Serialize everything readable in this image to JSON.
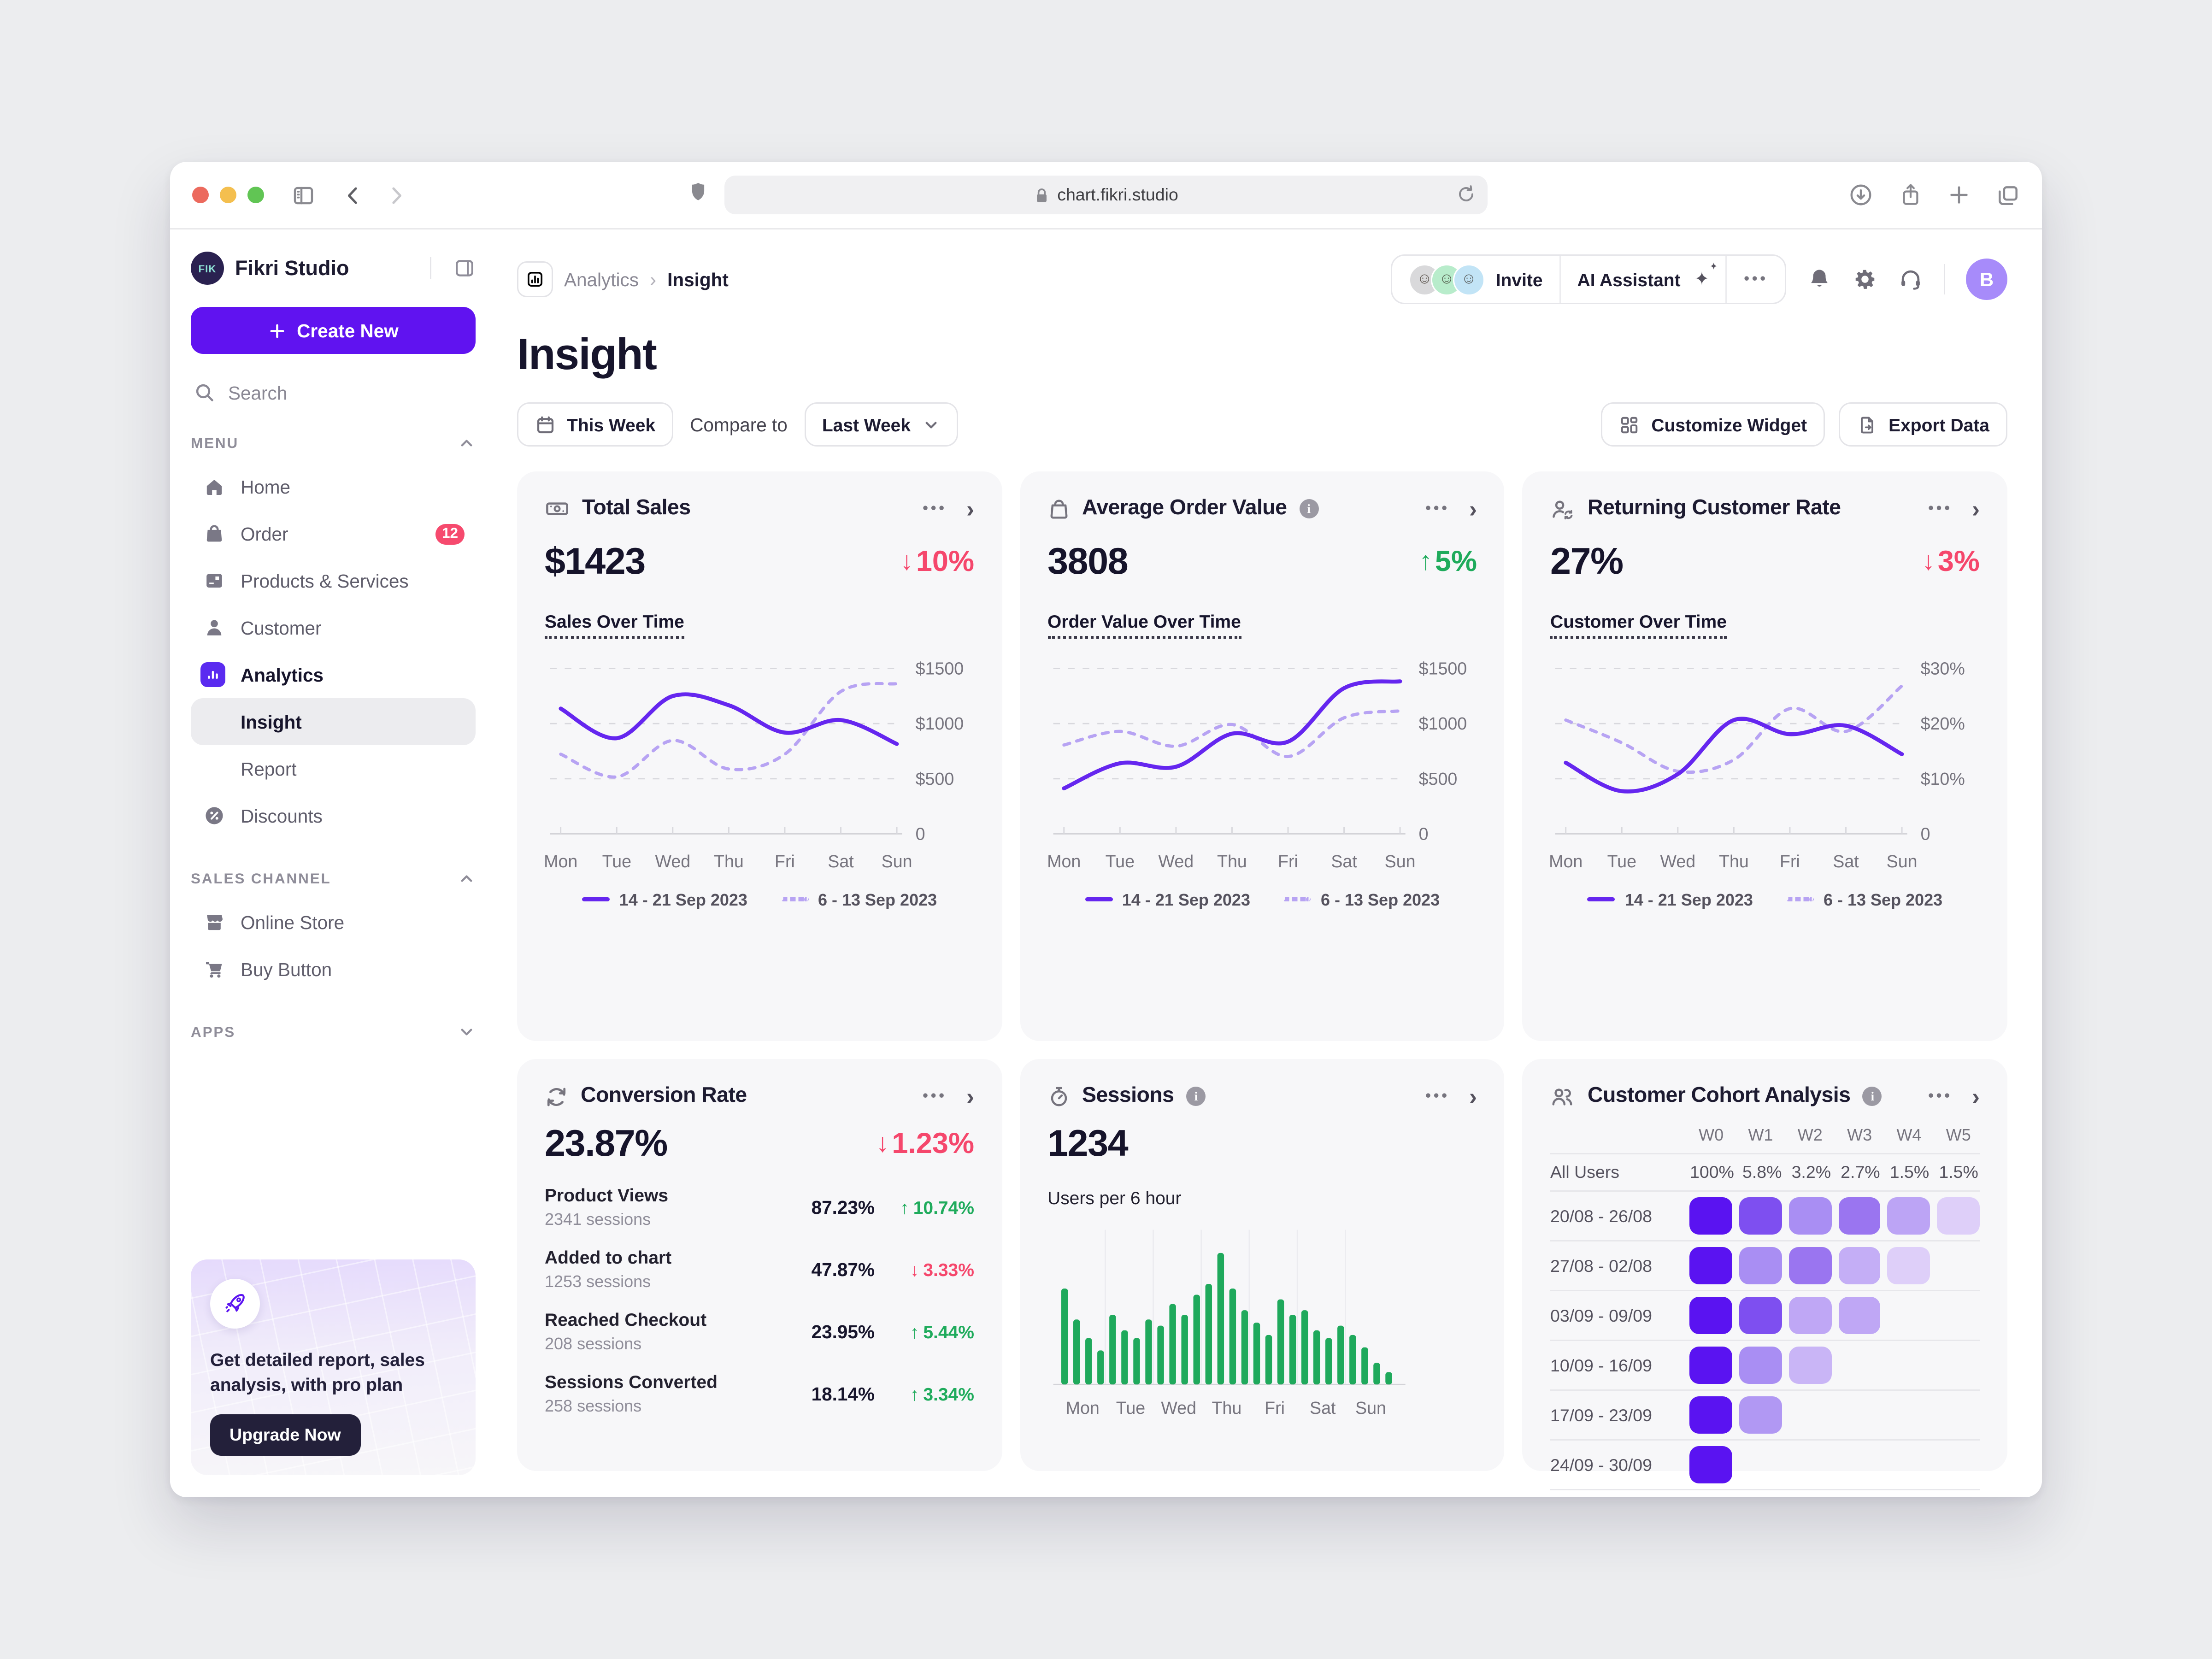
{
  "browser": {
    "url": "chart.fikri.studio"
  },
  "sidebar": {
    "brand": "Fikri Studio",
    "brand_initials": "FIK",
    "create_new": "Create New",
    "search_placeholder": "Search",
    "menu_label": "MENU",
    "menu": [
      {
        "label": "Home",
        "icon": "home"
      },
      {
        "label": "Order",
        "icon": "order",
        "badge": "12"
      },
      {
        "label": "Products & Services",
        "icon": "products"
      },
      {
        "label": "Customer",
        "icon": "customer"
      },
      {
        "label": "Analytics",
        "icon": "analytics",
        "bold": true
      },
      {
        "label": "Insight",
        "indent": true,
        "active": true
      },
      {
        "label": "Report",
        "indent": true
      },
      {
        "label": "Discounts",
        "icon": "discounts"
      }
    ],
    "sales_channel_label": "SALES CHANNEL",
    "sales_channel": [
      {
        "label": "Online Store",
        "icon": "store"
      },
      {
        "label": "Buy Button",
        "icon": "cart"
      }
    ],
    "apps_label": "APPS",
    "upgrade": {
      "text": "Get detailed report, sales analysis, with pro plan",
      "button": "Upgrade Now"
    }
  },
  "header": {
    "breadcrumb_parent": "Analytics",
    "breadcrumb_current": "Insight",
    "invite": "Invite",
    "ai_assistant": "AI Assistant",
    "avatar_initial": "B"
  },
  "toolbar": {
    "title": "Insight",
    "this_week": "This Week",
    "compare_to": "Compare to",
    "last_week": "Last Week",
    "customize": "Customize Widget",
    "export": "Export Data"
  },
  "legend": {
    "current": "14 - 21 Sep 2023",
    "previous": "6 - 13 Sep 2023"
  },
  "cards": {
    "total_sales": {
      "title": "Total Sales",
      "value": "$1423",
      "delta": "10%",
      "delta_dir": "down",
      "section": "Sales Over Time"
    },
    "aov": {
      "title": "Average Order Value",
      "value": "3808",
      "delta": "5%",
      "delta_dir": "up",
      "section": "Order Value Over Time"
    },
    "returning": {
      "title": "Returning Customer Rate",
      "value": "27%",
      "delta": "3%",
      "delta_dir": "down",
      "section": "Customer Over Time"
    },
    "conversion": {
      "title": "Conversion Rate",
      "value": "23.87%",
      "delta": "1.23%",
      "delta_dir": "down",
      "rows": [
        {
          "label": "Product Views",
          "sessions": "2341 sessions",
          "rate": "87.23%",
          "delta": "10.74%",
          "dir": "up"
        },
        {
          "label": "Added to chart",
          "sessions": "1253 sessions",
          "rate": "47.87%",
          "delta": "3.33%",
          "dir": "down"
        },
        {
          "label": "Reached Checkout",
          "sessions": "208 sessions",
          "rate": "23.95%",
          "delta": "5.44%",
          "dir": "up"
        },
        {
          "label": "Sessions Converted",
          "sessions": "258 sessions",
          "rate": "18.14%",
          "delta": "3.34%",
          "dir": "up"
        }
      ]
    },
    "sessions": {
      "title": "Sessions",
      "value": "1234",
      "subtitle": "Users per 6 hour"
    },
    "cohort": {
      "title": "Customer Cohort Analysis",
      "columns": [
        "W0",
        "W1",
        "W2",
        "W3",
        "W4",
        "W5"
      ],
      "all_users_label": "All Users",
      "all_users": [
        "100%",
        "5.8%",
        "3.2%",
        "2.7%",
        "1.5%",
        "1.5%"
      ],
      "rows": [
        {
          "label": "20/08 - 26/08",
          "cells": [
            "#5A13F1",
            "#7E4FF0",
            "#A98EF3",
            "#9A75F0",
            "#BCA4F5",
            "#DECFF9"
          ]
        },
        {
          "label": "27/08 - 02/08",
          "cells": [
            "#5A13F1",
            "#A98EF3",
            "#9A75F0",
            "#C4AEF6",
            "#DECFF9"
          ]
        },
        {
          "label": "03/09 - 09/09",
          "cells": [
            "#5A13F1",
            "#7E4FF0",
            "#BFA7F5",
            "#BFA7F5"
          ]
        },
        {
          "label": "10/09 - 16/09",
          "cells": [
            "#5A13F1",
            "#A98EF3",
            "#C9B5F6"
          ]
        },
        {
          "label": "17/09 - 23/09",
          "cells": [
            "#5A13F1",
            "#B198F3"
          ]
        },
        {
          "label": "24/09 - 30/09",
          "cells": [
            "#5A13F1"
          ]
        }
      ]
    }
  },
  "chart_data": [
    {
      "type": "line",
      "card": "total_sales",
      "title": "Sales Over Time",
      "x": [
        "Mon",
        "Tue",
        "Wed",
        "Thu",
        "Fri",
        "Sat",
        "Sun"
      ],
      "yticks": [
        "$1500",
        "$1000",
        "$500",
        "0"
      ],
      "ylim": [
        0,
        1500
      ],
      "series": [
        {
          "name": "14 - 21 Sep 2023",
          "style": "solid",
          "values": [
            1100,
            840,
            1210,
            1130,
            890,
            1000,
            790
          ]
        },
        {
          "name": "6 - 13 Sep 2023",
          "style": "dashed",
          "values": [
            700,
            500,
            820,
            570,
            700,
            1250,
            1320
          ]
        }
      ]
    },
    {
      "type": "line",
      "card": "aov",
      "title": "Order Value Over Time",
      "x": [
        "Mon",
        "Tue",
        "Wed",
        "Thu",
        "Fri",
        "Sat",
        "Sun"
      ],
      "yticks": [
        "$1500",
        "$1000",
        "$500",
        "0"
      ],
      "ylim": [
        0,
        1500
      ],
      "series": [
        {
          "name": "14 - 21 Sep 2023",
          "style": "solid",
          "values": [
            400,
            620,
            590,
            880,
            810,
            1280,
            1340
          ]
        },
        {
          "name": "6 - 13 Sep 2023",
          "style": "dashed",
          "values": [
            780,
            900,
            770,
            960,
            680,
            1020,
            1080
          ]
        }
      ]
    },
    {
      "type": "line",
      "card": "returning",
      "title": "Customer Over Time",
      "x": [
        "Mon",
        "Tue",
        "Wed",
        "Thu",
        "Fri",
        "Sat",
        "Sun"
      ],
      "yticks": [
        "$30%",
        "$20%",
        "$10%",
        "0"
      ],
      "ylim": [
        0,
        30
      ],
      "series": [
        {
          "name": "14 - 21 Sep 2023",
          "style": "solid",
          "values": [
            12.5,
            7.5,
            10.5,
            20,
            17.5,
            19,
            14
          ]
        },
        {
          "name": "6 - 13 Sep 2023",
          "style": "dashed",
          "values": [
            20,
            16,
            11,
            13,
            22,
            18,
            26
          ]
        }
      ]
    },
    {
      "type": "bar",
      "card": "sessions",
      "title": "Users per 6 hour",
      "x": [
        "Mon",
        "Tue",
        "Wed",
        "Thu",
        "Fri",
        "Sat",
        "Sun"
      ],
      "values": [
        62,
        42,
        30,
        22,
        45,
        35,
        30,
        42,
        38,
        52,
        45,
        58,
        65,
        85,
        62,
        48,
        40,
        32,
        55,
        45,
        48,
        35,
        30,
        38,
        32,
        24,
        14,
        8
      ],
      "bars_per_day": 4,
      "color": "#1FA95C",
      "ylim": [
        0,
        100
      ]
    }
  ],
  "colors": {
    "primary": "#6013F0",
    "line_solid": "#6526EF",
    "line_dashed": "#B7A3F3",
    "red": "#F5476C",
    "green": "#1FAB5C",
    "bars": "#1FA95C",
    "card_bg": "#F7F7F9",
    "badge": "#F64A6E"
  }
}
